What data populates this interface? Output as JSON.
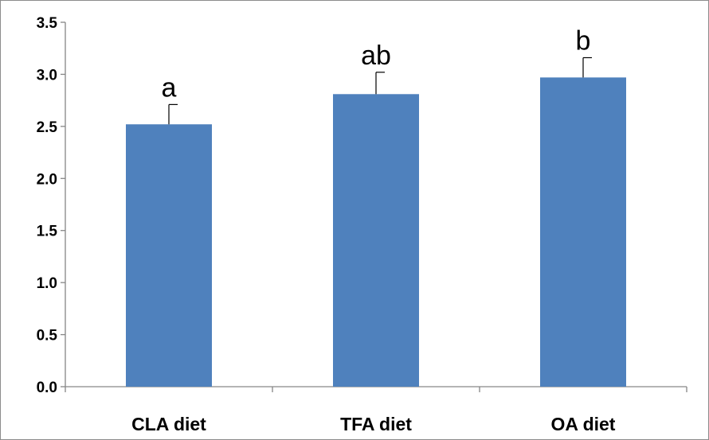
{
  "chart_data": {
    "type": "bar",
    "categories": [
      "CLA diet",
      "TFA diet",
      "OA diet"
    ],
    "values": [
      2.52,
      2.81,
      2.97
    ],
    "error": [
      0.19,
      0.21,
      0.19
    ],
    "annotations": [
      "a",
      "ab",
      "b"
    ],
    "ylim": [
      0,
      3.5
    ],
    "yticks": [
      "0.0",
      "0.5",
      "1.0",
      "1.5",
      "2.0",
      "2.5",
      "3.0",
      "3.5"
    ],
    "title": "",
    "xlabel": "",
    "ylabel": "",
    "grid": false,
    "bar_color": "#4f81bd"
  }
}
